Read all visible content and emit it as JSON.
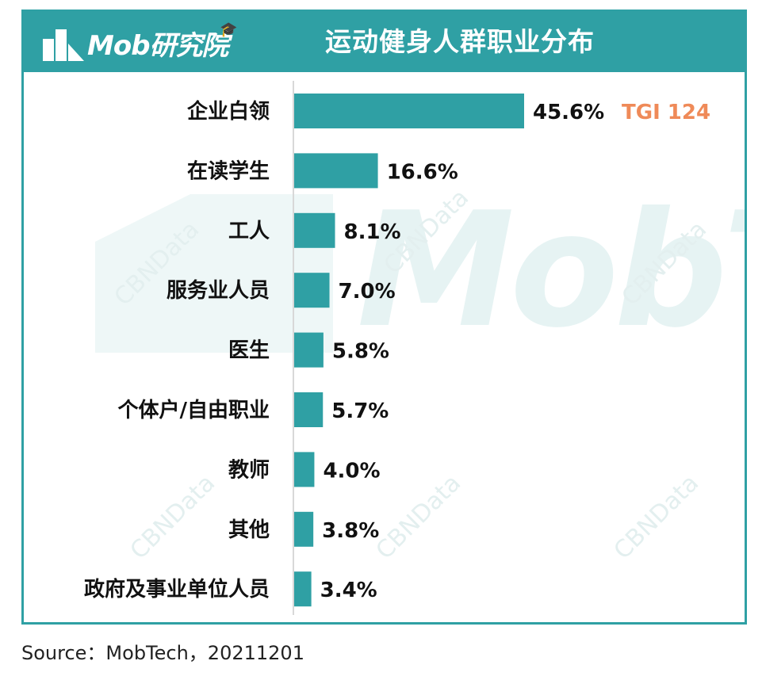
{
  "header": {
    "logo_text": "Mob研究院",
    "title": "运动健身人群职业分布"
  },
  "watermark": {
    "big_text": "MobT",
    "stamp_text": "CBNData"
  },
  "colors": {
    "accent": "#2fa0a4",
    "bar": "#2fa0a4",
    "tgi": "#ef8a58",
    "text": "#111111"
  },
  "chart_data": {
    "type": "bar",
    "orientation": "horizontal",
    "title": "运动健身人群职业分布",
    "categories": [
      "企业白领",
      "在读学生",
      "工人",
      "服务业人员",
      "医生",
      "个体户/自由职业",
      "教师",
      "其他",
      "政府及事业单位人员"
    ],
    "values": [
      45.6,
      16.6,
      8.1,
      7.0,
      5.8,
      5.7,
      4.0,
      3.8,
      3.4
    ],
    "value_labels": [
      "45.6%",
      "16.6%",
      "8.1%",
      "7.0%",
      "5.8%",
      "5.7%",
      "4.0%",
      "3.8%",
      "3.4%"
    ],
    "unit": "%",
    "annotation": "TGI 124",
    "annotation_category": "企业白领",
    "xlim": [
      0,
      100
    ],
    "grid": false,
    "legend": "none"
  },
  "source": "Source：MobTech，20211201"
}
